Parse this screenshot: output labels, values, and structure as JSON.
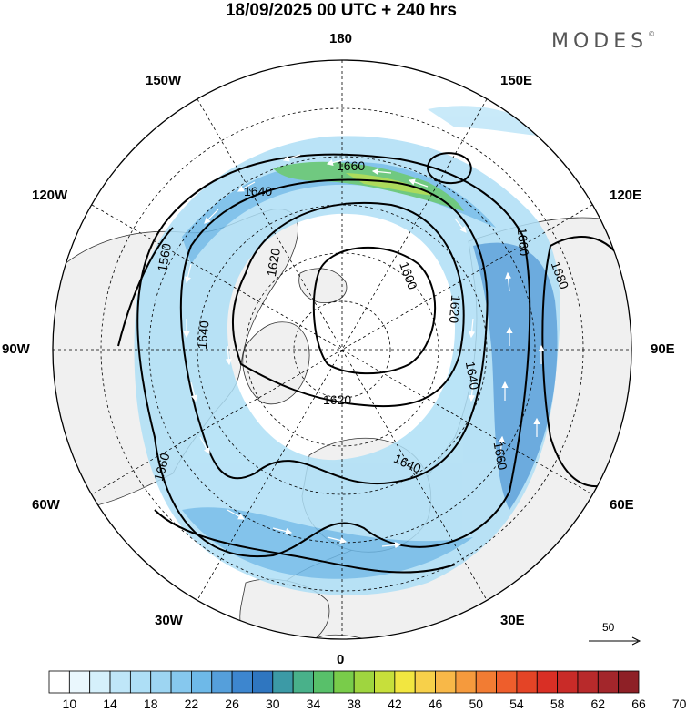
{
  "title": "18/09/2025  00 UTC  + 240 hrs",
  "brand": "MODES",
  "brand_mark": "©",
  "map": {
    "projection": "polar-stereographic-north",
    "longitude_labels": {
      "top": "180",
      "top_left": "150W",
      "top_right": "150E",
      "upper_left": "120W",
      "upper_right": "120E",
      "left": "90W",
      "right": "90E",
      "lower_left": "60W",
      "lower_right": "60E",
      "bottom_left": "30W",
      "bottom_right": "30E",
      "bottom": "0"
    },
    "contour_labels": [
      "1660",
      "1640",
      "1620",
      "1560",
      "1640",
      "1600",
      "1620",
      "1660",
      "1680",
      "1640",
      "1620",
      "1640",
      "1660",
      "1660"
    ],
    "fill_colors": {
      "land": "#f0f0f0",
      "ocean": "#ffffff",
      "coast": "#333333",
      "contour": "#000000",
      "grid": "#000000"
    }
  },
  "vector_reference": {
    "value": "50",
    "icon": "arrow-right-icon"
  },
  "colorbar": {
    "colors": [
      "#ffffff",
      "#eaf7fd",
      "#d5f0fb",
      "#bfe6f8",
      "#aedff6",
      "#9dd5f2",
      "#86c8ee",
      "#6eb9e8",
      "#559fdb",
      "#3d86cf",
      "#2f76c0",
      "#3c9aa6",
      "#49b18a",
      "#58c06a",
      "#79cc4a",
      "#9fd53f",
      "#c7df3b",
      "#f2e640",
      "#f7d04a",
      "#f8b848",
      "#f59a3d",
      "#f27c33",
      "#ee5e2c",
      "#e44426",
      "#d92f25",
      "#c92b28",
      "#b82a2b",
      "#a3262b",
      "#8e2026"
    ],
    "tick_labels": [
      "10",
      "14",
      "18",
      "22",
      "26",
      "30",
      "34",
      "38",
      "42",
      "46",
      "50",
      "54",
      "58",
      "62",
      "66",
      "70"
    ]
  }
}
